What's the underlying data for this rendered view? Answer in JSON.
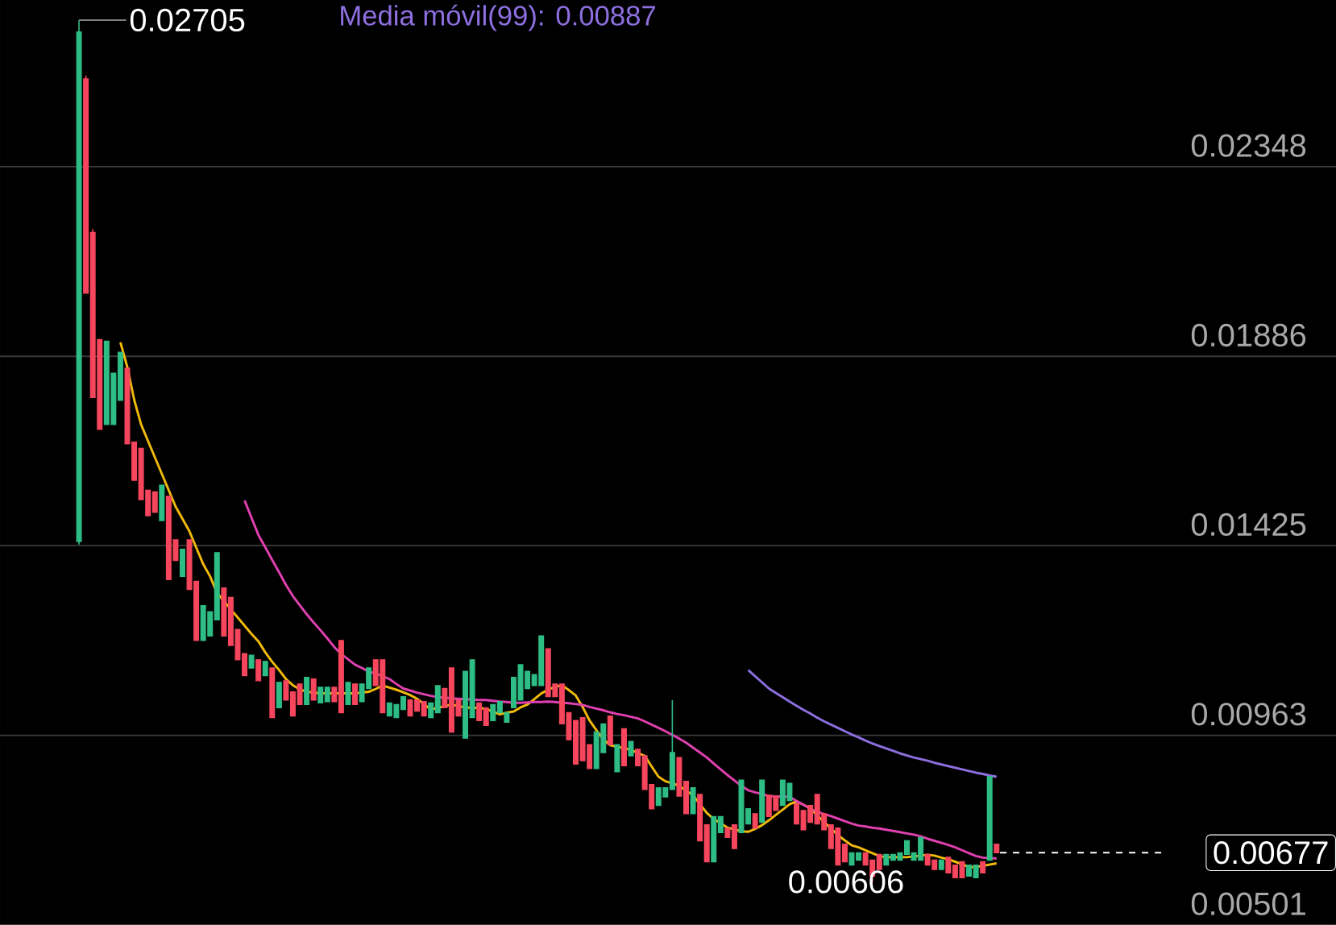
{
  "chart_data": {
    "type": "candlestick",
    "title": "Media móvil(99): 0.00887",
    "categories": [
      null,
      null,
      null,
      null,
      null,
      null,
      null,
      null,
      null,
      null,
      null,
      null,
      null,
      null,
      null,
      null,
      null,
      null,
      null,
      null,
      null,
      null,
      null,
      null,
      null,
      null,
      null,
      null,
      null,
      null,
      null,
      null,
      null,
      null,
      null,
      null,
      null,
      null,
      null,
      null,
      null,
      null,
      null,
      null,
      null,
      null,
      null,
      null,
      null,
      null,
      null,
      null,
      null,
      null,
      null,
      null,
      null,
      null,
      null,
      null,
      null,
      null,
      null,
      null,
      null,
      null,
      null,
      null,
      null,
      null,
      null,
      null,
      null,
      null,
      null,
      null,
      null,
      null,
      null,
      null,
      null,
      null,
      null,
      null,
      null,
      null,
      null,
      null,
      null,
      null,
      null,
      null,
      null,
      null,
      null,
      null,
      null,
      null,
      null,
      null,
      null,
      null,
      null,
      null,
      null,
      null,
      null,
      null,
      null,
      null,
      null,
      null,
      null,
      null,
      null,
      null,
      null,
      null,
      null,
      null,
      null,
      null,
      null,
      null,
      null,
      null,
      null,
      null,
      null,
      null,
      null,
      null,
      null,
      null
    ],
    "ohlc": [
      [
        0.01435,
        0.02705,
        0.01428,
        0.02676
      ],
      [
        0.02562,
        0.0257,
        0.0204,
        0.0204
      ],
      [
        0.02188,
        0.02196,
        0.01786,
        0.01786
      ],
      [
        0.01927,
        0.01927,
        0.01708,
        0.01708
      ],
      [
        0.0172,
        0.01923,
        0.0172,
        0.01923
      ],
      [
        0.0172,
        0.01845,
        0.0172,
        0.01845
      ],
      [
        0.01779,
        0.01896,
        0.01779,
        0.01896
      ],
      [
        0.01857,
        0.01857,
        0.01673,
        0.01673
      ],
      [
        0.01677,
        0.01677,
        0.01584,
        0.01584
      ],
      [
        0.01662,
        0.01662,
        0.01537,
        0.01537
      ],
      [
        0.0156,
        0.0156,
        0.01498,
        0.01498
      ],
      [
        0.01556,
        0.01556,
        0.01506,
        0.01506
      ],
      [
        0.01486,
        0.01572,
        0.01486,
        0.01572
      ],
      [
        0.01545,
        0.01545,
        0.01342,
        0.01342
      ],
      [
        0.01439,
        0.01439,
        0.01389,
        0.01389
      ],
      [
        0.0135,
        0.01416,
        0.0135,
        0.01416
      ],
      [
        0.01439,
        0.01439,
        0.01318,
        0.01318
      ],
      [
        0.01338,
        0.01338,
        0.01194,
        0.01194
      ],
      [
        0.01194,
        0.01279,
        0.01194,
        0.01279
      ],
      [
        0.01205,
        0.01264,
        0.01205,
        0.01264
      ],
      [
        0.01244,
        0.01408,
        0.01244,
        0.01408
      ],
      [
        0.01322,
        0.01322,
        0.01205,
        0.01205
      ],
      [
        0.01299,
        0.01299,
        0.01182,
        0.01182
      ],
      [
        0.01221,
        0.01221,
        0.01147,
        0.01147
      ],
      [
        0.01162,
        0.01162,
        0.01108,
        0.01108
      ],
      [
        0.01127,
        0.01158,
        0.01127,
        0.01158
      ],
      [
        0.01147,
        0.01147,
        0.01096,
        0.01096
      ],
      [
        0.01108,
        0.01143,
        0.01108,
        0.01143
      ],
      [
        0.01127,
        0.01127,
        0.01006,
        0.01006
      ],
      [
        0.0103,
        0.01092,
        0.0103,
        0.01092
      ],
      [
        0.01096,
        0.01096,
        0.01049,
        0.01049
      ],
      [
        0.01069,
        0.01069,
        0.0101,
        0.0101
      ],
      [
        0.01088,
        0.01088,
        0.01038,
        0.01038
      ],
      [
        0.01038,
        0.01104,
        0.01038,
        0.01104
      ],
      [
        0.011,
        0.011,
        0.01049,
        0.01049
      ],
      [
        0.01042,
        0.0108,
        0.01042,
        0.0108
      ],
      [
        0.01045,
        0.0108,
        0.01045,
        0.0108
      ],
      [
        0.0108,
        0.0108,
        0.01045,
        0.01045
      ],
      [
        0.01194,
        0.01194,
        0.01018,
        0.01018
      ],
      [
        0.01038,
        0.01092,
        0.01038,
        0.01092
      ],
      [
        0.01088,
        0.01088,
        0.01038,
        0.01038
      ],
      [
        0.01045,
        0.01088,
        0.01045,
        0.01088
      ],
      [
        0.01077,
        0.01127,
        0.01077,
        0.01127
      ],
      [
        0.01147,
        0.01147,
        0.01084,
        0.01084
      ],
      [
        0.01147,
        0.01147,
        0.01018,
        0.01018
      ],
      [
        0.0101,
        0.01042,
        0.0101,
        0.01042
      ],
      [
        0.01006,
        0.01038,
        0.01006,
        0.01038
      ],
      [
        0.01026,
        0.01057,
        0.01026,
        0.01057
      ],
      [
        0.01049,
        0.01049,
        0.0101,
        0.0101
      ],
      [
        0.01049,
        0.01049,
        0.01022,
        0.01022
      ],
      [
        0.01045,
        0.01045,
        0.0101,
        0.0101
      ],
      [
        0.01006,
        0.01042,
        0.01006,
        0.01042
      ],
      [
        0.01018,
        0.01084,
        0.01018,
        0.01084
      ],
      [
        0.01077,
        0.01077,
        0.0103,
        0.0103
      ],
      [
        0.01127,
        0.01127,
        0.00971,
        0.00971
      ],
      [
        0.01049,
        0.01049,
        0.0101,
        0.0101
      ],
      [
        0.00956,
        0.01119,
        0.00956,
        0.01119
      ],
      [
        0.01006,
        0.01147,
        0.01006,
        0.01147
      ],
      [
        0.01042,
        0.01042,
        0.00999,
        0.00999
      ],
      [
        0.0103,
        0.0103,
        0.00987,
        0.00987
      ],
      [
        0.00999,
        0.01038,
        0.00999,
        0.01038
      ],
      [
        0.01018,
        0.01045,
        0.01018,
        0.01045
      ],
      [
        0.00995,
        0.01018,
        0.00995,
        0.01018
      ],
      [
        0.0103,
        0.01104,
        0.0103,
        0.01104
      ],
      [
        0.01049,
        0.01135,
        0.01049,
        0.01135
      ],
      [
        0.01077,
        0.01119,
        0.01077,
        0.01119
      ],
      [
        0.01084,
        0.01111,
        0.01084,
        0.01111
      ],
      [
        0.01084,
        0.01205,
        0.01084,
        0.01205
      ],
      [
        0.01174,
        0.01174,
        0.01057,
        0.01057
      ],
      [
        0.01088,
        0.01088,
        0.01057,
        0.01057
      ],
      [
        0.01088,
        0.01088,
        0.00991,
        0.00991
      ],
      [
        0.01018,
        0.01018,
        0.00952,
        0.00952
      ],
      [
        0.00999,
        0.00999,
        0.00893,
        0.00893
      ],
      [
        0.01006,
        0.01006,
        0.00901,
        0.00901
      ],
      [
        0.0094,
        0.0094,
        0.00882,
        0.00882
      ],
      [
        0.00882,
        0.00971,
        0.00882,
        0.00971
      ],
      [
        0.00921,
        0.00991,
        0.00921,
        0.00991
      ],
      [
        0.0101,
        0.0101,
        0.0094,
        0.0094
      ],
      [
        0.00874,
        0.0094,
        0.00874,
        0.0094
      ],
      [
        0.00979,
        0.00979,
        0.00889,
        0.00889
      ],
      [
        0.00913,
        0.00948,
        0.00913,
        0.00948
      ],
      [
        0.00929,
        0.00929,
        0.00889,
        0.00889
      ],
      [
        0.00913,
        0.00913,
        0.00831,
        0.00831
      ],
      [
        0.00843,
        0.00843,
        0.00784,
        0.00784
      ],
      [
        0.00792,
        0.00835,
        0.00792,
        0.00835
      ],
      [
        0.00813,
        0.00835,
        0.00813,
        0.00835
      ],
      [
        0.00831,
        0.01049,
        0.00831,
        0.00921
      ],
      [
        0.00909,
        0.00909,
        0.00815,
        0.00815
      ],
      [
        0.00851,
        0.00851,
        0.00772,
        0.00772
      ],
      [
        0.00772,
        0.00835,
        0.00772,
        0.00835
      ],
      [
        0.00819,
        0.00819,
        0.00706,
        0.00706
      ],
      [
        0.00745,
        0.00745,
        0.00655,
        0.00655
      ],
      [
        0.00655,
        0.00765,
        0.00655,
        0.00765
      ],
      [
        0.00726,
        0.00765,
        0.00726,
        0.00765
      ],
      [
        0.00737,
        0.00737,
        0.00714,
        0.00714
      ],
      [
        0.00745,
        0.00745,
        0.00687,
        0.00687
      ],
      [
        0.00726,
        0.00854,
        0.00726,
        0.00854
      ],
      [
        0.00747,
        0.00784,
        0.00747,
        0.00784
      ],
      [
        0.00772,
        0.00772,
        0.00737,
        0.00737
      ],
      [
        0.00751,
        0.00854,
        0.00751,
        0.00854
      ],
      [
        0.00817,
        0.00817,
        0.00765,
        0.00765
      ],
      [
        0.00815,
        0.00815,
        0.0078,
        0.0078
      ],
      [
        0.00792,
        0.00854,
        0.00792,
        0.00854
      ],
      [
        0.00804,
        0.00846,
        0.00804,
        0.00846
      ],
      [
        0.00796,
        0.00796,
        0.00747,
        0.00747
      ],
      [
        0.0078,
        0.0078,
        0.00733,
        0.00733
      ],
      [
        0.00792,
        0.00792,
        0.00751,
        0.00751
      ],
      [
        0.00819,
        0.00819,
        0.00747,
        0.00747
      ],
      [
        0.00772,
        0.00772,
        0.00733,
        0.00733
      ],
      [
        0.00745,
        0.00745,
        0.00687,
        0.00687
      ],
      [
        0.00737,
        0.00737,
        0.00647,
        0.00647
      ],
      [
        0.00698,
        0.00698,
        0.00655,
        0.00655
      ],
      [
        0.00647,
        0.00677,
        0.00647,
        0.00677
      ],
      [
        0.00659,
        0.00677,
        0.00659,
        0.00677
      ],
      [
        0.00677,
        0.00677,
        0.00647,
        0.00647
      ],
      [
        0.00659,
        0.00659,
        0.00606,
        0.0062
      ],
      [
        0.00673,
        0.00673,
        0.00636,
        0.00636
      ],
      [
        0.00647,
        0.00673,
        0.00647,
        0.00673
      ],
      [
        0.00659,
        0.00673,
        0.00659,
        0.00673
      ],
      [
        0.00659,
        0.00677,
        0.00659,
        0.00677
      ],
      [
        0.00673,
        0.00706,
        0.00673,
        0.00706
      ],
      [
        0.00659,
        0.00677,
        0.00659,
        0.00677
      ],
      [
        0.00659,
        0.00714,
        0.00659,
        0.00714
      ],
      [
        0.00673,
        0.00673,
        0.00647,
        0.00647
      ],
      [
        0.00659,
        0.00659,
        0.00636,
        0.00636
      ],
      [
        0.00636,
        0.00659,
        0.00636,
        0.00659
      ],
      [
        0.00666,
        0.00666,
        0.00628,
        0.00628
      ],
      [
        0.00647,
        0.00647,
        0.00616,
        0.00616
      ],
      [
        0.00655,
        0.00655,
        0.00616,
        0.00616
      ],
      [
        0.0062,
        0.00647,
        0.0062,
        0.00647
      ],
      [
        0.00616,
        0.00647,
        0.00616,
        0.00647
      ],
      [
        0.00655,
        0.00655,
        0.00628,
        0.00628
      ],
      [
        0.00659,
        0.00862,
        0.00659,
        0.00862
      ],
      [
        0.00698,
        0.00698,
        0.00677,
        0.00677
      ]
    ],
    "colors": [
      "#2ebd85",
      "#f6465d",
      "#f6465d",
      "#f6465d",
      "#2ebd85",
      "#2ebd85",
      "#2ebd85",
      "#f6465d",
      "#f6465d",
      "#f6465d",
      "#f6465d",
      "#f6465d",
      "#2ebd85",
      "#f6465d",
      "#f6465d",
      "#2ebd85",
      "#f6465d",
      "#f6465d",
      "#2ebd85",
      "#2ebd85",
      "#2ebd85",
      "#f6465d",
      "#f6465d",
      "#f6465d",
      "#f6465d",
      "#2ebd85",
      "#f6465d",
      "#2ebd85",
      "#f6465d",
      "#2ebd85",
      "#f6465d",
      "#f6465d",
      "#f6465d",
      "#2ebd85",
      "#f6465d",
      "#2ebd85",
      "#2ebd85",
      "#f6465d",
      "#f6465d",
      "#2ebd85",
      "#f6465d",
      "#2ebd85",
      "#2ebd85",
      "#f6465d",
      "#f6465d",
      "#2ebd85",
      "#2ebd85",
      "#2ebd85",
      "#f6465d",
      "#f6465d",
      "#f6465d",
      "#2ebd85",
      "#2ebd85",
      "#f6465d",
      "#f6465d",
      "#f6465d",
      "#2ebd85",
      "#2ebd85",
      "#f6465d",
      "#f6465d",
      "#2ebd85",
      "#2ebd85",
      "#2ebd85",
      "#2ebd85",
      "#2ebd85",
      "#2ebd85",
      "#2ebd85",
      "#2ebd85",
      "#f6465d",
      "#f6465d",
      "#f6465d",
      "#f6465d",
      "#f6465d",
      "#f6465d",
      "#f6465d",
      "#2ebd85",
      "#2ebd85",
      "#f6465d",
      "#2ebd85",
      "#f6465d",
      "#2ebd85",
      "#f6465d",
      "#f6465d",
      "#f6465d",
      "#2ebd85",
      "#2ebd85",
      "#2ebd85",
      "#f6465d",
      "#f6465d",
      "#2ebd85",
      "#f6465d",
      "#f6465d",
      "#2ebd85",
      "#2ebd85",
      "#f6465d",
      "#f6465d",
      "#2ebd85",
      "#2ebd85",
      "#f6465d",
      "#2ebd85",
      "#f6465d",
      "#f6465d",
      "#2ebd85",
      "#2ebd85",
      "#f6465d",
      "#f6465d",
      "#f6465d",
      "#f6465d",
      "#f6465d",
      "#f6465d",
      "#f6465d",
      "#f6465d",
      "#2ebd85",
      "#2ebd85",
      "#f6465d",
      "#f6465d",
      "#f6465d",
      "#2ebd85",
      "#2ebd85",
      "#2ebd85",
      "#2ebd85",
      "#2ebd85",
      "#2ebd85",
      "#f6465d",
      "#f6465d",
      "#2ebd85",
      "#f6465d",
      "#f6465d",
      "#f6465d",
      "#2ebd85",
      "#2ebd85",
      "#f6465d",
      "#2ebd85",
      "#f6465d"
    ],
    "series": [
      {
        "type": "line",
        "color": "#f0b90b",
        "values": [
          null,
          null,
          null,
          null,
          null,
          null,
          0.0192,
          0.0186,
          0.0178,
          0.0172,
          0.0168,
          0.0164,
          0.016,
          0.0156,
          0.0152,
          0.0149,
          0.0146,
          0.0142,
          0.0138,
          0.0135,
          0.0131,
          0.0129,
          0.0127,
          0.0125,
          0.0123,
          0.0121,
          0.01192,
          0.01165,
          0.01142,
          0.01122,
          0.011,
          0.01085,
          0.01075,
          0.01069,
          0.01067,
          0.01065,
          0.01065,
          0.01065,
          0.01065,
          0.01065,
          0.01065,
          0.01067,
          0.01069,
          0.01076,
          0.01084,
          0.01079,
          0.01074,
          0.01068,
          0.01061,
          0.01052,
          0.01039,
          0.01026,
          0.0103,
          0.01034,
          0.01038,
          0.01034,
          0.01031,
          0.0103,
          0.0103,
          0.01027,
          0.01021,
          0.01014,
          0.01018,
          0.01021,
          0.01031,
          0.01038,
          0.01051,
          0.01065,
          0.01074,
          0.01081,
          0.01085,
          0.01073,
          0.0106,
          0.01032,
          0.00999,
          0.00975,
          0.00953,
          0.00939,
          0.00935,
          0.00932,
          0.00927,
          0.0092,
          0.00913,
          0.00887,
          0.00862,
          0.00851,
          0.00846,
          0.0084,
          0.00828,
          0.00817,
          0.00795,
          0.00774,
          0.00759,
          0.00749,
          0.00738,
          0.00734,
          0.00729,
          0.00728,
          0.00735,
          0.00744,
          0.00756,
          0.00769,
          0.00782,
          0.00795,
          0.00802,
          0.00794,
          0.00785,
          0.00768,
          0.00752,
          0.00736,
          0.0072,
          0.00707,
          0.00695,
          0.0069,
          0.00683,
          0.00676,
          0.00669,
          0.00666,
          0.00666,
          0.00666,
          0.00666,
          0.00668,
          0.0067,
          0.00672,
          0.0067,
          0.00665,
          0.00661,
          0.00655,
          0.00649,
          0.00642,
          0.00642,
          0.00645,
          0.00648,
          0.00651
        ]
      },
      {
        "type": "line",
        "color": "#e040b0",
        "values": [
          null,
          null,
          null,
          null,
          null,
          null,
          null,
          null,
          null,
          null,
          null,
          null,
          null,
          null,
          null,
          null,
          null,
          null,
          null,
          null,
          null,
          null,
          null,
          null,
          0.01535,
          0.01493,
          0.01451,
          0.01421,
          0.0139,
          0.0136,
          0.01329,
          0.01302,
          0.0128,
          0.01258,
          0.01238,
          0.01219,
          0.01199,
          0.01178,
          0.01161,
          0.01148,
          0.01135,
          0.01127,
          0.01118,
          0.01114,
          0.01107,
          0.011,
          0.01088,
          0.01077,
          0.01072,
          0.01067,
          0.01063,
          0.01059,
          0.01056,
          0.01055,
          0.01053,
          0.01052,
          0.01051,
          0.0105,
          0.01049,
          0.01049,
          0.01047,
          0.01045,
          0.01044,
          0.01042,
          0.01042,
          0.01043,
          0.01044,
          0.01044,
          0.01045,
          0.01044,
          0.01042,
          0.01041,
          0.01039,
          0.01037,
          0.01032,
          0.01028,
          0.01024,
          0.01019,
          0.01015,
          0.01012,
          0.01008,
          0.01004,
          0.00997,
          0.00989,
          0.00981,
          0.00973,
          0.00964,
          0.00955,
          0.00945,
          0.00933,
          0.00921,
          0.00909,
          0.00894,
          0.0088,
          0.00866,
          0.00853,
          0.0084,
          0.00829,
          0.00824,
          0.0082,
          0.00815,
          0.00814,
          0.00814,
          0.00813,
          0.00803,
          0.00794,
          0.00784,
          0.00777,
          0.00771,
          0.00766,
          0.0076,
          0.00754,
          0.00748,
          0.00743,
          0.00741,
          0.00738,
          0.00736,
          0.00733,
          0.0073,
          0.00727,
          0.00724,
          0.00721,
          0.00717,
          0.00711,
          0.00706,
          0.00701,
          0.00696,
          0.0069,
          0.00683,
          0.00676,
          0.00669,
          0.00665,
          0.00664,
          0.00663
        ]
      },
      {
        "type": "line",
        "color": "#8e6fe0",
        "values": [
          null,
          null,
          null,
          null,
          null,
          null,
          null,
          null,
          null,
          null,
          null,
          null,
          null,
          null,
          null,
          null,
          null,
          null,
          null,
          null,
          null,
          null,
          null,
          null,
          null,
          null,
          null,
          null,
          null,
          null,
          null,
          null,
          null,
          null,
          null,
          null,
          null,
          null,
          null,
          null,
          null,
          null,
          null,
          null,
          null,
          null,
          null,
          null,
          null,
          null,
          null,
          null,
          null,
          null,
          null,
          null,
          null,
          null,
          null,
          null,
          null,
          null,
          null,
          null,
          null,
          null,
          null,
          null,
          null,
          null,
          null,
          null,
          null,
          null,
          null,
          null,
          null,
          null,
          null,
          null,
          null,
          null,
          null,
          null,
          null,
          null,
          null,
          null,
          null,
          null,
          null,
          null,
          null,
          null,
          null,
          null,
          null,
          0.01122,
          0.01107,
          0.01092,
          0.01077,
          0.01066,
          0.01056,
          0.01045,
          0.01035,
          0.01025,
          0.01016,
          0.01006,
          0.00997,
          0.00989,
          0.00981,
          0.00973,
          0.00965,
          0.00958,
          0.0095,
          0.00943,
          0.00937,
          0.00931,
          0.00925,
          0.00919,
          0.00914,
          0.00909,
          0.00905,
          0.00901,
          0.00896,
          0.00892,
          0.00888,
          0.00884,
          0.0088,
          0.00876,
          0.00872,
          0.00869,
          0.00865,
          0.00862
        ]
      }
    ],
    "ylim": [
      0.00501,
      0.02754
    ],
    "yticks": [
      0.00501,
      0.00963,
      0.01425,
      0.01886,
      0.02348
    ],
    "grid": "y",
    "ref_lines": [
      {
        "axis": "y",
        "value": 0.00677,
        "label": "0.00677",
        "line_style": "dashed",
        "color": "#ffffff"
      }
    ],
    "annotations": [
      "0.02705",
      "0.00606"
    ]
  }
}
